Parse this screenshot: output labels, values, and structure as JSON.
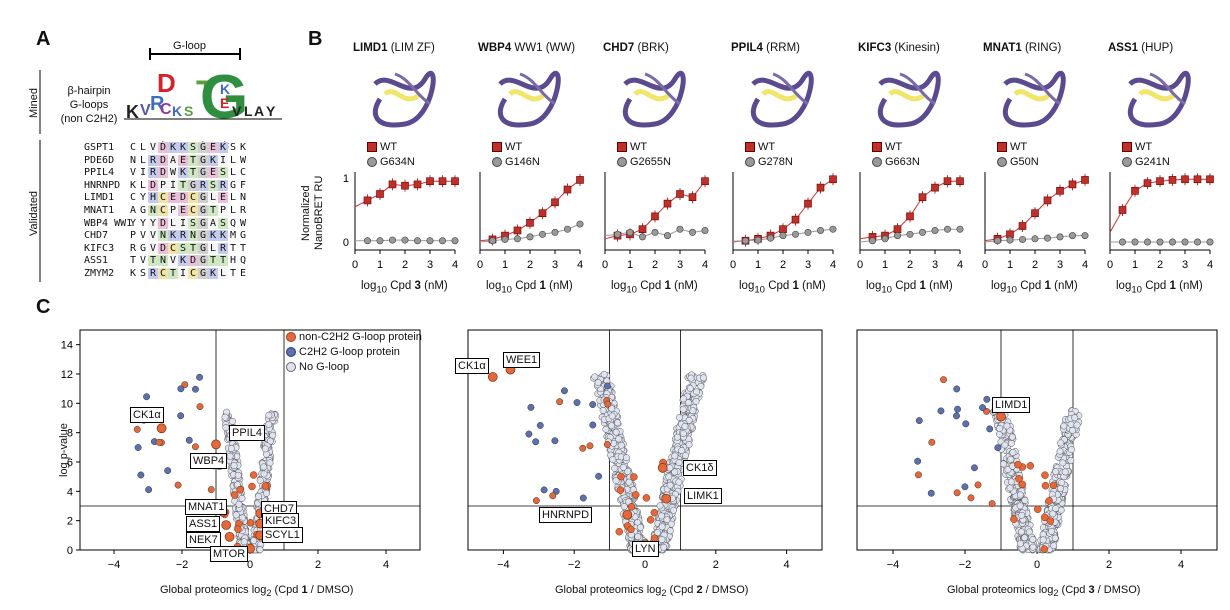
{
  "panels": {
    "a": "A",
    "b": "B",
    "c": "C"
  },
  "panel_a": {
    "gloop_label": "G-loop",
    "mined_label": "Mined",
    "validated_label": "Validated",
    "hairpin_line1": "β-hairpin",
    "hairpin_line2": "G-loops",
    "hairpin_line3": "(non C2H2)",
    "asterisks": "*          *       *",
    "rows": [
      {
        "name": "GSPT1",
        "seq": "CLVDKKSGEKSK"
      },
      {
        "name": "PDE6D",
        "seq": "NLRDAETGKILW"
      },
      {
        "name": "PPIL4",
        "seq": "VIRDWKTGESLC"
      },
      {
        "name": "HNRNPD",
        "seq": "KLDPITGRSRGF"
      },
      {
        "name": "LIMD1",
        "seq": "CYHCEDCGLELN"
      },
      {
        "name": "MNAT1",
        "seq": "AGNCPECGTPLR"
      },
      {
        "name": "WBP4 WW1",
        "seq": "YYYDLISGASQW"
      },
      {
        "name": "CHD7",
        "seq": "PVVNKRNGKKMG"
      },
      {
        "name": "KIFC3",
        "seq": "RGVDCSTGLRTT"
      },
      {
        "name": "ASS1",
        "seq": "TVTNVKDGTTHQ"
      },
      {
        "name": "ZMYM2",
        "seq": "KSRCTICGKLTE"
      }
    ]
  },
  "panel_b": {
    "ylabel1": "Normalized",
    "ylabel2": "NanoBRET RU",
    "yticks": [
      "0",
      "1"
    ],
    "xticks": [
      "0",
      "1",
      "2",
      "3",
      "4"
    ],
    "wt_label": "WT",
    "proteins": [
      {
        "gene": "LIMD1",
        "domain": "(LIM ZF)",
        "mut": "G634N",
        "xlabel_cpd": "3",
        "wt": [
          0.55,
          0.65,
          0.75,
          0.9,
          0.88,
          0.9,
          0.95,
          0.95,
          0.95
        ],
        "mut_vals": [
          0.02,
          0.02,
          0.02,
          0.03,
          0.03,
          0.02,
          0.02,
          0.02,
          0.02
        ]
      },
      {
        "gene": "WBP4",
        "domain": "WW1 (WW)",
        "mut": "G146N",
        "xlabel_cpd": "1",
        "wt": [
          0.02,
          0.04,
          0.1,
          0.18,
          0.3,
          0.45,
          0.62,
          0.82,
          0.97
        ],
        "mut_vals": [
          0.0,
          0.02,
          0.04,
          0.05,
          0.08,
          0.12,
          0.15,
          0.2,
          0.28
        ]
      },
      {
        "gene": "CHD7",
        "domain": "(BRK)",
        "mut": "G2655N",
        "xlabel_cpd": "1",
        "wt": [
          0.05,
          0.1,
          0.12,
          0.2,
          0.4,
          0.6,
          0.75,
          0.7,
          0.95
        ],
        "mut_vals": [
          0.1,
          0.12,
          0.15,
          0.08,
          0.15,
          0.1,
          0.2,
          0.15,
          0.18
        ]
      },
      {
        "gene": "PPIL4",
        "domain": "(RRM)",
        "mut": "G278N",
        "xlabel_cpd": "1",
        "wt": [
          0.01,
          0.02,
          0.05,
          0.1,
          0.2,
          0.35,
          0.6,
          0.85,
          0.98
        ],
        "mut_vals": [
          0.0,
          0.02,
          0.03,
          0.06,
          0.1,
          0.12,
          0.15,
          0.18,
          0.2
        ]
      },
      {
        "gene": "KIFC3",
        "domain": "(Kinesin)",
        "mut": "G663N",
        "xlabel_cpd": "1",
        "wt": [
          0.05,
          0.08,
          0.1,
          0.2,
          0.4,
          0.7,
          0.85,
          0.95,
          0.95
        ],
        "mut_vals": [
          0.0,
          0.02,
          0.05,
          0.1,
          0.12,
          0.15,
          0.18,
          0.2,
          0.2
        ]
      },
      {
        "gene": "MNAT1",
        "domain": "(RING)",
        "mut": "G50N",
        "xlabel_cpd": "1",
        "wt": [
          0.02,
          0.05,
          0.12,
          0.25,
          0.45,
          0.65,
          0.8,
          0.9,
          0.97
        ],
        "mut_vals": [
          0.0,
          0.02,
          0.03,
          0.04,
          0.05,
          0.06,
          0.08,
          0.1,
          0.1
        ]
      },
      {
        "gene": "ASS1",
        "domain": "(HUP)",
        "mut": "G241N",
        "xlabel_cpd": "1",
        "wt": [
          0.15,
          0.5,
          0.8,
          0.92,
          0.95,
          0.97,
          0.98,
          0.98,
          0.98
        ],
        "mut_vals": [
          0.0,
          0.0,
          0.0,
          0.0,
          0.0,
          0.0,
          0.0,
          0.0,
          0.0
        ]
      }
    ],
    "xlabel_prefix": "log",
    "xlabel_sub": "10",
    "xlabel_mid": " Cpd ",
    "xlabel_suffix": " (nM)"
  },
  "panel_c": {
    "ylabel": "log p-value",
    "yticks": [
      "0",
      "2",
      "4",
      "6",
      "8",
      "10",
      "12",
      "14"
    ],
    "xticks": [
      "−4",
      "−2",
      "0",
      "2",
      "4"
    ],
    "legend": {
      "nonc2h2": "non-C2H2 G-loop protein",
      "c2h2": "C2H2 G-loop protein",
      "none": "No G-loop"
    },
    "colors": {
      "orange": "#e4683a",
      "blue": "#5c6fb0",
      "grey": "#dfe4f0"
    },
    "plots": [
      {
        "xlabel_pre": "Global proteomics log",
        "xlabel_sub": "2",
        "xlabel_mid": " (Cpd ",
        "xlabel_cpd": "1",
        "xlabel_post": " / DMSO)",
        "labels": [
          {
            "t": "CK1α",
            "x": -2.6,
            "y": 8.3
          },
          {
            "t": "PPIL4",
            "x": -1.0,
            "y": 7.2
          },
          {
            "t": "WBP4",
            "x": -0.9,
            "y": 5.8
          },
          {
            "t": "MNAT1",
            "x": -0.8,
            "y": 2.6
          },
          {
            "t": "ASS1",
            "x": -0.7,
            "y": 1.7
          },
          {
            "t": "NEK7",
            "x": -0.6,
            "y": 0.9
          },
          {
            "t": "MTOR",
            "x": 0.0,
            "y": 0.1
          },
          {
            "t": "CHD7",
            "x": 0.3,
            "y": 2.5
          },
          {
            "t": "KIFC3",
            "x": 0.3,
            "y": 1.8
          },
          {
            "t": "SCYL1",
            "x": 0.3,
            "y": 1.0
          }
        ]
      },
      {
        "xlabel_pre": "Global proteomics log",
        "xlabel_sub": "2",
        "xlabel_mid": " (Cpd ",
        "xlabel_cpd": "2",
        "xlabel_post": " / DMSO)",
        "labels": [
          {
            "t": "CK1α",
            "x": -4.3,
            "y": 11.8
          },
          {
            "t": "WEE1",
            "x": -3.8,
            "y": 12.3
          },
          {
            "t": "CK1δ",
            "x": 0.5,
            "y": 5.6
          },
          {
            "t": "LIMK1",
            "x": 0.6,
            "y": 3.5
          },
          {
            "t": "HNRNPD",
            "x": -0.5,
            "y": 2.4
          },
          {
            "t": "LYN",
            "x": 0.0,
            "y": 0.4
          }
        ]
      },
      {
        "xlabel_pre": "Global proteomics log",
        "xlabel_sub": "2",
        "xlabel_mid": " (Cpd ",
        "xlabel_cpd": "3",
        "xlabel_post": " / DMSO)",
        "labels": [
          {
            "t": "LIMD1",
            "x": -1.0,
            "y": 9.1
          }
        ]
      }
    ]
  }
}
